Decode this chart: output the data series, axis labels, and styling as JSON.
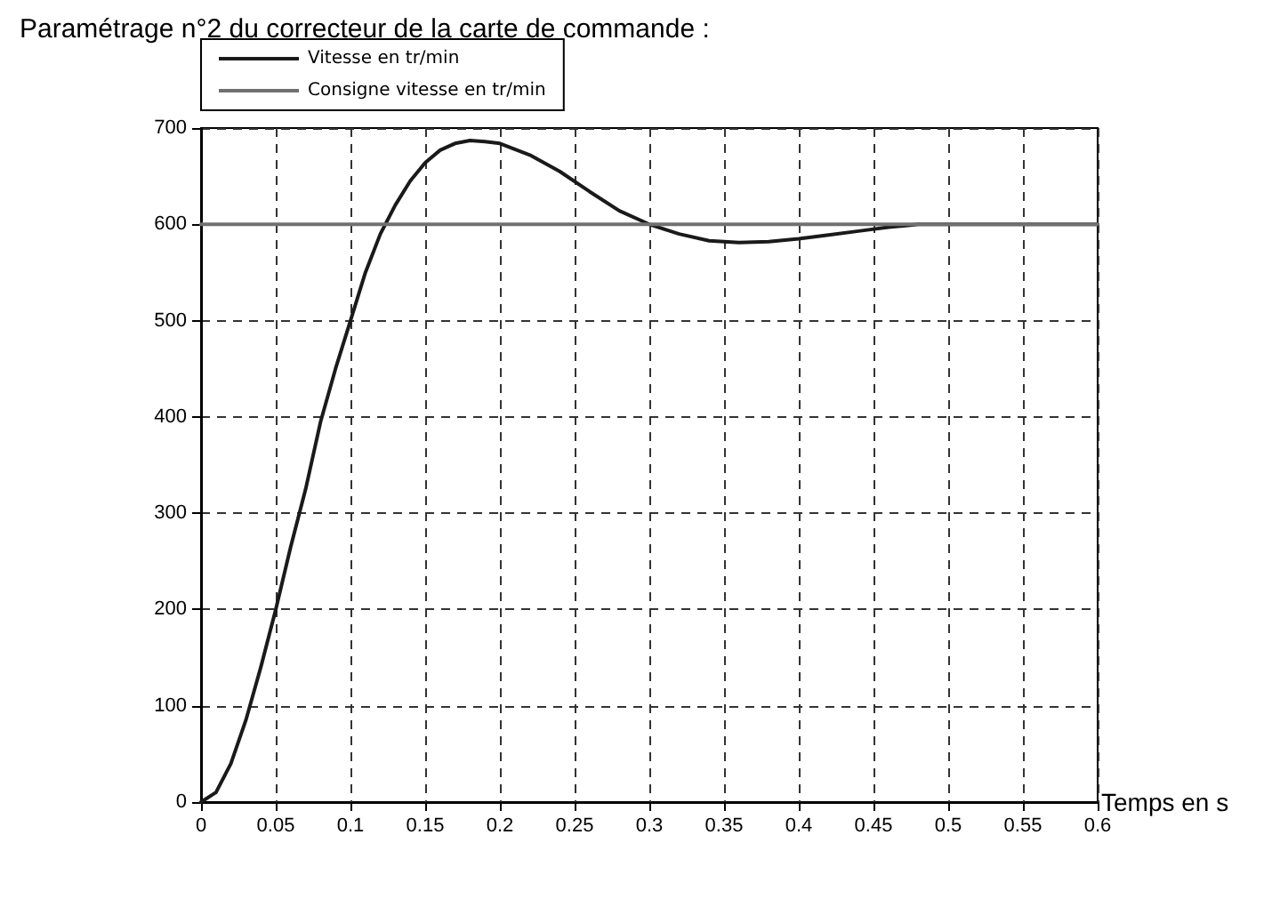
{
  "chart_data": {
    "type": "line",
    "title": "Paramétrage n°2 du correcteur de la carte de commande :",
    "xlabel": "Temps en s",
    "xlim": [
      0,
      0.6
    ],
    "xticks": [
      0,
      0.05,
      0.1,
      0.15,
      0.2,
      0.25,
      0.3,
      0.35,
      0.4,
      0.45,
      0.5,
      0.55,
      0.6
    ],
    "ylim": [
      0,
      700
    ],
    "yticks": [
      0,
      100,
      200,
      300,
      400,
      500,
      600,
      700
    ],
    "grid": true,
    "legend": "top left",
    "marker": "none",
    "line_style": "solid",
    "series": [
      {
        "name": "Vitesse en tr/min",
        "color": "#1a1a1a",
        "x": [
          0,
          0.01,
          0.02,
          0.03,
          0.04,
          0.05,
          0.06,
          0.07,
          0.08,
          0.09,
          0.1,
          0.11,
          0.12,
          0.13,
          0.14,
          0.15,
          0.16,
          0.17,
          0.18,
          0.19,
          0.2,
          0.22,
          0.24,
          0.26,
          0.28,
          0.3,
          0.32,
          0.34,
          0.36,
          0.38,
          0.4,
          0.42,
          0.44,
          0.46,
          0.48,
          0.5,
          0.55,
          0.6
        ],
        "values": [
          0,
          10,
          40,
          85,
          140,
          200,
          265,
          325,
          395,
          450,
          500,
          550,
          590,
          620,
          645,
          664,
          677,
          684,
          687,
          686,
          684,
          672,
          655,
          634,
          614,
          600,
          590,
          583,
          581,
          582,
          585,
          589,
          593,
          597,
          600,
          600,
          600,
          600
        ]
      },
      {
        "name": "Consigne vitesse en tr/min",
        "color": "#707070",
        "x": [
          0,
          0.6
        ],
        "values": [
          600,
          600
        ]
      }
    ]
  }
}
